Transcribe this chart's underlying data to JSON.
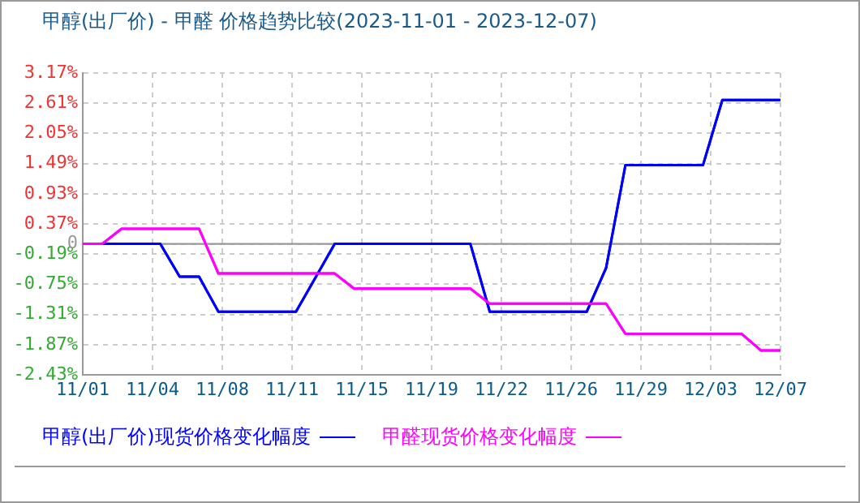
{
  "chart_data": {
    "type": "line",
    "title": "甲醇(出厂价) - 甲醛 价格趋势比较(2023-11-01 - 2023-12-07)",
    "x": [
      "2023-11-01",
      "2023-11-02",
      "2023-11-03",
      "2023-11-04",
      "2023-11-05",
      "2023-11-06",
      "2023-11-07",
      "2023-11-08",
      "2023-11-09",
      "2023-11-10",
      "2023-11-11",
      "2023-11-12",
      "2023-11-13",
      "2023-11-14",
      "2023-11-15",
      "2023-11-16",
      "2023-11-17",
      "2023-11-18",
      "2023-11-19",
      "2023-11-20",
      "2023-11-21",
      "2023-11-22",
      "2023-11-23",
      "2023-11-24",
      "2023-11-25",
      "2023-11-26",
      "2023-11-27",
      "2023-11-28",
      "2023-11-29",
      "2023-11-30",
      "2023-12-01",
      "2023-12-02",
      "2023-12-03",
      "2023-12-04",
      "2023-12-05",
      "2023-12-06",
      "2023-12-07"
    ],
    "series": [
      {
        "name": "甲醇(出厂价)现货价格变化幅度",
        "color": "#0000ff",
        "values": [
          0,
          0,
          0,
          0,
          0,
          -0.61,
          -0.61,
          -1.26,
          -1.26,
          -1.26,
          -1.26,
          -1.26,
          -0.63,
          0,
          0,
          0,
          0,
          0,
          0,
          0,
          0,
          -1.26,
          -1.26,
          -1.26,
          -1.26,
          -1.26,
          -1.26,
          -0.45,
          1.46,
          1.46,
          1.46,
          1.46,
          1.46,
          2.67,
          2.67,
          2.67,
          2.67
        ]
      },
      {
        "name": "甲醛现货价格变化幅度",
        "color": "#ff00ff",
        "values": [
          0,
          0,
          0.28,
          0.28,
          0.28,
          0.28,
          0.28,
          -0.55,
          -0.55,
          -0.55,
          -0.55,
          -0.55,
          -0.55,
          -0.55,
          -0.83,
          -0.83,
          -0.83,
          -0.83,
          -0.83,
          -0.83,
          -0.83,
          -1.11,
          -1.11,
          -1.11,
          -1.11,
          -1.11,
          -1.11,
          -1.11,
          -1.67,
          -1.67,
          -1.67,
          -1.67,
          -1.67,
          -1.67,
          -1.67,
          -1.98,
          -1.98
        ]
      }
    ],
    "xlim": [
      "2023-11-01",
      "2023-12-07"
    ],
    "xticks": [
      {
        "value": "2023-11-01",
        "label": "11/01"
      },
      {
        "value": "2023-11-04T14:24",
        "label": "11/04"
      },
      {
        "value": "2023-11-08T04:48",
        "label": "11/08"
      },
      {
        "value": "2023-11-11T19:12",
        "label": "11/11"
      },
      {
        "value": "2023-11-15T09:36",
        "label": "11/15"
      },
      {
        "value": "2023-11-19",
        "label": "11/19"
      },
      {
        "value": "2023-11-22T14:24",
        "label": "11/22"
      },
      {
        "value": "2023-11-26T04:48",
        "label": "11/26"
      },
      {
        "value": "2023-11-29T19:12",
        "label": "11/29"
      },
      {
        "value": "2023-12-03T09:36",
        "label": "12/03"
      },
      {
        "value": "2023-12-07",
        "label": "12/07"
      }
    ],
    "ylim": [
      -2.43,
      3.17
    ],
    "yticks": [
      {
        "value": -2.43,
        "label": "-2.43%"
      },
      {
        "value": -1.87,
        "label": "-1.87%"
      },
      {
        "value": -1.31,
        "label": "-1.31%"
      },
      {
        "value": -0.75,
        "label": "-0.75%"
      },
      {
        "value": -0.19,
        "label": "-0.19%"
      },
      0,
      {
        "value": 0.37,
        "label": "0.37%"
      },
      {
        "value": 0.93,
        "label": "0.93%"
      },
      {
        "value": 1.49,
        "label": "1.49%"
      },
      {
        "value": 2.05,
        "label": "2.05%"
      },
      {
        "value": 2.61,
        "label": "2.61%"
      },
      {
        "value": 3.17,
        "label": "3.17%"
      }
    ],
    "ref_lines": [
      {
        "axis": "y",
        "value": 0,
        "color": "#999999"
      }
    ],
    "grid": true,
    "legend": "bottom",
    "marker": "none",
    "line_style": "solid"
  }
}
